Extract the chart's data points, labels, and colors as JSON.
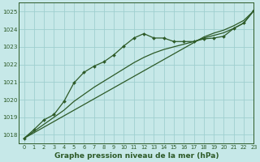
{
  "background_color": "#c6e8e8",
  "grid_color": "#9fcfcf",
  "line_color": "#2d5a27",
  "marker_color": "#2d5a27",
  "xlabel": "Graphe pression niveau de la mer (hPa)",
  "xlabel_fontsize": 6.5,
  "xlim": [
    -0.5,
    23
  ],
  "ylim": [
    1017.5,
    1025.5
  ],
  "yticks": [
    1018,
    1019,
    1020,
    1021,
    1022,
    1023,
    1024,
    1025
  ],
  "xticks": [
    0,
    1,
    2,
    3,
    4,
    5,
    6,
    7,
    8,
    9,
    10,
    11,
    12,
    13,
    14,
    15,
    16,
    17,
    18,
    19,
    20,
    21,
    22,
    23
  ],
  "series_wavy_x": [
    0,
    1,
    2,
    3,
    4,
    5,
    6,
    7,
    8,
    9,
    10,
    11,
    12,
    13,
    14,
    15,
    16,
    17,
    18,
    19,
    20,
    21,
    22,
    23
  ],
  "series_wavy_y": [
    1017.8,
    1018.3,
    1018.85,
    1019.15,
    1019.9,
    1020.95,
    1021.55,
    1021.9,
    1022.15,
    1022.55,
    1023.05,
    1023.5,
    1023.75,
    1023.5,
    1023.5,
    1023.3,
    1023.3,
    1023.3,
    1023.45,
    1023.5,
    1023.6,
    1024.05,
    1024.35,
    1025.05
  ],
  "series_linear_x": [
    0,
    1,
    2,
    3,
    4,
    5,
    6,
    7,
    8,
    9,
    10,
    11,
    12,
    13,
    14,
    15,
    16,
    17,
    18,
    19,
    20,
    21,
    22,
    23
  ],
  "series_linear_y": [
    1017.8,
    1018.12,
    1018.44,
    1018.76,
    1019.08,
    1019.4,
    1019.72,
    1020.04,
    1020.36,
    1020.68,
    1021.0,
    1021.32,
    1021.64,
    1021.96,
    1022.28,
    1022.6,
    1022.92,
    1023.24,
    1023.56,
    1023.78,
    1023.95,
    1024.2,
    1024.5,
    1025.05
  ],
  "series_mid_x": [
    0,
    1,
    2,
    3,
    4,
    5,
    6,
    7,
    8,
    9,
    10,
    11,
    12,
    13,
    14,
    15,
    16,
    17,
    18,
    19,
    20,
    21,
    22,
    23
  ],
  "series_mid_y": [
    1017.8,
    1018.2,
    1018.6,
    1019.0,
    1019.4,
    1019.9,
    1020.3,
    1020.7,
    1021.05,
    1021.4,
    1021.75,
    1022.1,
    1022.4,
    1022.65,
    1022.85,
    1023.0,
    1023.15,
    1023.3,
    1023.5,
    1023.65,
    1023.8,
    1024.05,
    1024.35,
    1025.05
  ]
}
